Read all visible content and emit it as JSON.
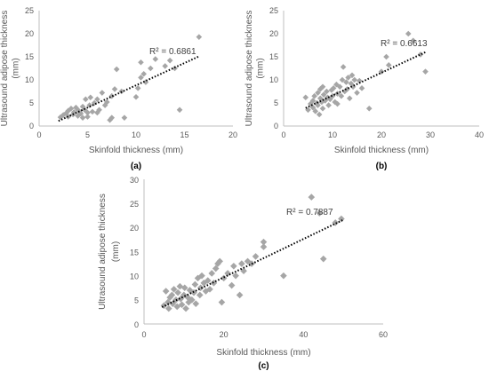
{
  "marker_color": "#a6a6a6",
  "trend_color": "#000000",
  "chart_data": [
    {
      "type": "scatter",
      "caption": "(a)",
      "xlabel": "Skinfold thickness (mm)",
      "ylabel_lines": [
        "Ultrasound adipose thickness",
        "(mm)"
      ],
      "r2": "R² = 0.6861",
      "xlim": [
        0,
        20
      ],
      "ylim": [
        0,
        25
      ],
      "xticks": [
        0,
        5,
        10,
        15,
        20
      ],
      "yticks": [
        0,
        5,
        10,
        15,
        20,
        25
      ],
      "trend": [
        [
          2,
          1.1
        ],
        [
          16.5,
          15.1
        ]
      ],
      "points": [
        [
          2.2,
          1.9
        ],
        [
          2.5,
          2.4
        ],
        [
          2.8,
          2.8
        ],
        [
          3.0,
          3.3
        ],
        [
          3.0,
          2.0
        ],
        [
          3.3,
          3.8
        ],
        [
          3.5,
          2.5
        ],
        [
          3.6,
          3.0
        ],
        [
          3.8,
          4.0
        ],
        [
          4.0,
          2.2
        ],
        [
          4.0,
          3.5
        ],
        [
          4.2,
          3.0
        ],
        [
          4.3,
          2.7
        ],
        [
          4.5,
          4.2
        ],
        [
          4.5,
          1.8
        ],
        [
          4.7,
          3.5
        ],
        [
          4.8,
          5.8
        ],
        [
          5.0,
          2.9
        ],
        [
          5.0,
          2.0
        ],
        [
          5.2,
          4.5
        ],
        [
          5.3,
          6.2
        ],
        [
          5.5,
          3.1
        ],
        [
          5.7,
          5.0
        ],
        [
          6.0,
          5.8
        ],
        [
          6.0,
          2.9
        ],
        [
          6.2,
          3.5
        ],
        [
          6.5,
          7.2
        ],
        [
          6.8,
          4.5
        ],
        [
          7.0,
          5.2
        ],
        [
          7.3,
          1.3
        ],
        [
          7.5,
          6.5
        ],
        [
          7.5,
          1.8
        ],
        [
          7.8,
          8.0
        ],
        [
          8.0,
          12.3
        ],
        [
          8.5,
          7.5
        ],
        [
          8.8,
          1.8
        ],
        [
          10.0,
          6.3
        ],
        [
          10.2,
          8.2
        ],
        [
          10.5,
          10.5
        ],
        [
          10.5,
          13.8
        ],
        [
          10.8,
          11.3
        ],
        [
          11.0,
          9.5
        ],
        [
          11.5,
          12.5
        ],
        [
          12.0,
          14.5
        ],
        [
          13.0,
          13.0
        ],
        [
          13.5,
          14.2
        ],
        [
          14.0,
          12.5
        ],
        [
          14.5,
          3.5
        ],
        [
          16.5,
          19.3
        ]
      ]
    },
    {
      "type": "scatter",
      "caption": "(b)",
      "xlabel": "Skinfold thickness (mm)",
      "ylabel_lines": [
        "Ultrasound adipose thickness",
        "(mm)"
      ],
      "r2": "R² = 0.6613",
      "xlim": [
        0,
        40
      ],
      "ylim": [
        0,
        25
      ],
      "xticks": [
        0,
        10,
        20,
        30,
        40
      ],
      "yticks": [
        0,
        5,
        10,
        15,
        20,
        25
      ],
      "trend": [
        [
          4.5,
          3.9
        ],
        [
          29,
          16.0
        ]
      ],
      "points": [
        [
          4.5,
          6.2
        ],
        [
          5.0,
          3.5
        ],
        [
          5.5,
          4.8
        ],
        [
          6.0,
          5.5
        ],
        [
          6.0,
          4.0
        ],
        [
          6.3,
          6.5
        ],
        [
          6.5,
          3.2
        ],
        [
          6.8,
          5.0
        ],
        [
          7.0,
          7.2
        ],
        [
          7.0,
          4.5
        ],
        [
          7.3,
          2.5
        ],
        [
          7.5,
          8.0
        ],
        [
          7.5,
          6.0
        ],
        [
          7.8,
          5.2
        ],
        [
          8.0,
          8.5
        ],
        [
          8.0,
          3.8
        ],
        [
          8.2,
          6.8
        ],
        [
          8.5,
          5.5
        ],
        [
          8.8,
          7.5
        ],
        [
          9.0,
          6.2
        ],
        [
          9.2,
          4.5
        ],
        [
          9.5,
          5.8
        ],
        [
          9.8,
          7.8
        ],
        [
          10.0,
          6.5
        ],
        [
          10.2,
          8.2
        ],
        [
          10.5,
          5.2
        ],
        [
          10.8,
          9.0
        ],
        [
          11.0,
          7.0
        ],
        [
          11.0,
          4.8
        ],
        [
          11.5,
          8.5
        ],
        [
          11.8,
          6.5
        ],
        [
          12.0,
          10.0
        ],
        [
          12.2,
          12.8
        ],
        [
          12.5,
          7.5
        ],
        [
          12.8,
          9.5
        ],
        [
          13.0,
          8.0
        ],
        [
          13.2,
          10.5
        ],
        [
          13.5,
          6.0
        ],
        [
          13.8,
          9.2
        ],
        [
          14.0,
          11.0
        ],
        [
          14.2,
          8.5
        ],
        [
          14.5,
          10.0
        ],
        [
          15.0,
          7.2
        ],
        [
          15.5,
          9.8
        ],
        [
          16.0,
          8.2
        ],
        [
          17.5,
          3.8
        ],
        [
          20.0,
          11.8
        ],
        [
          21.0,
          15.0
        ],
        [
          21.5,
          13.2
        ],
        [
          25.5,
          20.0
        ],
        [
          26.5,
          18.5
        ],
        [
          28.0,
          15.5
        ],
        [
          29.0,
          11.8
        ]
      ]
    },
    {
      "type": "scatter",
      "caption": "(c)",
      "xlabel": "Skinfold thickness (mm)",
      "ylabel_lines": [
        "Ultrasound adipose thickness",
        "(mm)"
      ],
      "r2": "R² = 0.7887",
      "xlim": [
        0,
        60
      ],
      "ylim": [
        0,
        30
      ],
      "xticks": [
        0,
        20,
        40,
        60
      ],
      "yticks": [
        0,
        5,
        10,
        15,
        20,
        25,
        30
      ],
      "trend": [
        [
          4.5,
          3.5
        ],
        [
          50,
          21.6
        ]
      ],
      "points": [
        [
          5.0,
          3.8
        ],
        [
          5.5,
          6.8
        ],
        [
          6.0,
          4.5
        ],
        [
          6.2,
          3.2
        ],
        [
          6.5,
          5.5
        ],
        [
          7.0,
          6.0
        ],
        [
          7.2,
          4.2
        ],
        [
          7.5,
          7.2
        ],
        [
          8.0,
          5.0
        ],
        [
          8.3,
          3.6
        ],
        [
          8.5,
          6.5
        ],
        [
          9.0,
          7.8
        ],
        [
          9.2,
          5.2
        ],
        [
          9.5,
          4.0
        ],
        [
          10.0,
          6.0
        ],
        [
          10.2,
          7.5
        ],
        [
          10.5,
          3.2
        ],
        [
          11.0,
          5.5
        ],
        [
          11.2,
          4.5
        ],
        [
          11.5,
          7.0
        ],
        [
          12.0,
          5.0
        ],
        [
          12.5,
          6.5
        ],
        [
          12.8,
          8.2
        ],
        [
          13.0,
          4.2
        ],
        [
          13.5,
          9.5
        ],
        [
          14.0,
          6.0
        ],
        [
          14.2,
          7.5
        ],
        [
          14.5,
          10.0
        ],
        [
          15.0,
          8.5
        ],
        [
          15.5,
          6.8
        ],
        [
          16.0,
          9.0
        ],
        [
          16.5,
          7.2
        ],
        [
          17.0,
          10.5
        ],
        [
          17.5,
          8.5
        ],
        [
          18.0,
          11.5
        ],
        [
          18.5,
          12.5
        ],
        [
          19.0,
          13.0
        ],
        [
          19.5,
          4.5
        ],
        [
          20.0,
          9.5
        ],
        [
          21.0,
          10.5
        ],
        [
          22.0,
          8.0
        ],
        [
          22.5,
          12.0
        ],
        [
          23.0,
          10.0
        ],
        [
          24.0,
          6.0
        ],
        [
          24.5,
          12.5
        ],
        [
          25.0,
          11.0
        ],
        [
          26.0,
          13.0
        ],
        [
          27.0,
          12.5
        ],
        [
          28.0,
          14.0
        ],
        [
          30.0,
          16.0
        ],
        [
          30.0,
          17.0
        ],
        [
          35.0,
          10.0
        ],
        [
          42.0,
          26.3
        ],
        [
          44.0,
          23.0
        ],
        [
          45.0,
          13.5
        ],
        [
          48.0,
          21.0
        ],
        [
          49.5,
          21.8
        ]
      ]
    }
  ]
}
